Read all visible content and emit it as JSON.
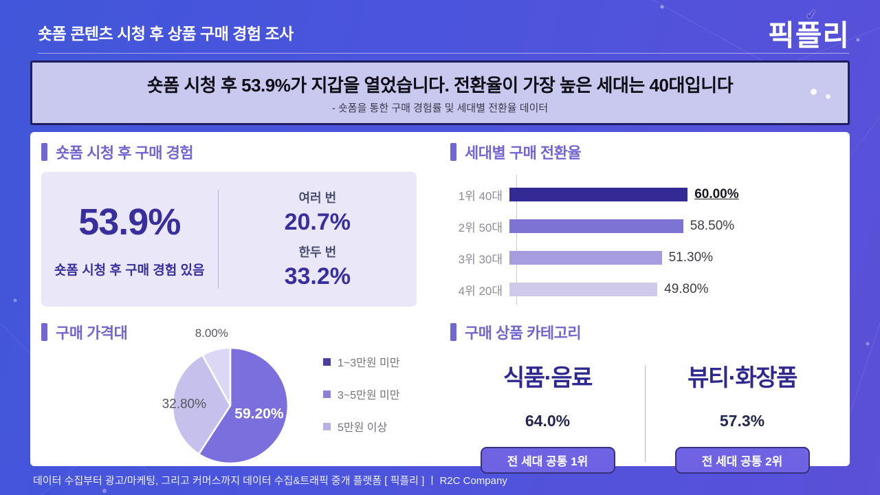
{
  "theme": {
    "background_blue": "#4156da",
    "background_purple": "#5b50d8",
    "accent_purple": "#7066d4",
    "section_title_color": "#7165cf",
    "indigo_text": "#392f9c",
    "banner_bg": "#c9c8ee",
    "banner_border": "#201d60",
    "badge_bg": "#6e63e2",
    "badge_border": "#37307f"
  },
  "header": {
    "title": "숏폼 콘텐츠 시청 후 상품 구매 경험 조사",
    "logo": "픽플리"
  },
  "banner": {
    "headline": "숏폼 시청 후 53.9%가 지갑을 열었습니다. 전환율이 가장 높은 세대는 40대입니다",
    "subtitle": "- 숏폼을 통한 구매 경험률 및 세대별 전환율 데이터"
  },
  "purchase_experience": {
    "section_title": "숏폼 시청 후 구매 경험",
    "main_value": "53.9%",
    "main_label": "숏폼 시청 후 구매 경험 있음",
    "breakdown": [
      {
        "label": "여러 번",
        "value": "20.7%"
      },
      {
        "label": "한두 번",
        "value": "33.2%"
      }
    ]
  },
  "category_section": {
    "section_title": "구매 상품 카테고리",
    "items": [
      {
        "name": "식품·음료",
        "value": "64.0%",
        "badge": "전 세대 공통 1위"
      },
      {
        "name": "뷰티·화장품",
        "value": "57.3%",
        "badge": "전 세대 공통 2위"
      }
    ]
  },
  "footer": {
    "text": "데이터 수집부터 광고/마케팅, 그리고 커머스까지 데이터 수집&트래픽 중개 플랫폼 [ 픽플리 ]  ㅣ  R2C Company"
  },
  "chart_data": [
    {
      "type": "bar",
      "orientation": "horizontal",
      "title": "세대별 구매 전환율",
      "categories": [
        "1위 40대",
        "2위 50대",
        "3위 30대",
        "4위 20대"
      ],
      "values": [
        60.0,
        58.5,
        51.3,
        49.8
      ],
      "value_labels": [
        "60.00%",
        "58.50%",
        "51.30%",
        "49.80%"
      ],
      "bar_colors": [
        "#332a96",
        "#7d73d4",
        "#a59dde",
        "#cfcaea"
      ],
      "highlight_index": 0,
      "xlim": [
        0,
        66
      ],
      "grid": false,
      "legend": false
    },
    {
      "type": "pie",
      "title": "구매 가격대",
      "labels": [
        "1~3만원 미만",
        "3~5만원 미만",
        "5만원 이상"
      ],
      "values": [
        59.2,
        32.8,
        8.0
      ],
      "value_labels": [
        "59.20%",
        "32.80%",
        "8.00%"
      ],
      "slice_colors": [
        "#7a6fdd",
        "#c6c0ec",
        "#dcd7f4"
      ],
      "legend_colors": [
        "#4a3f9f",
        "#8b82d8",
        "#b9b1e6"
      ],
      "start_angle_deg": 0,
      "direction": "clockwise",
      "legend_position": "right",
      "label_layout": {
        "radius_factor": [
          0.52,
          0.8,
          1.3
        ],
        "colors": [
          "#ffffff",
          "#55555f",
          "#55555f"
        ],
        "sizes": [
          21,
          19,
          17
        ],
        "weights": [
          700,
          400,
          400
        ]
      }
    }
  ]
}
